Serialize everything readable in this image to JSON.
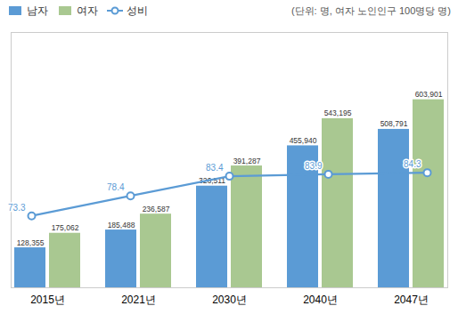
{
  "chart_data": {
    "type": "bar",
    "subtitle": "(단위: 명, 여자 노인인구 100명당 명)",
    "categories": [
      "2015년",
      "2021년",
      "2030년",
      "2040년",
      "2047년"
    ],
    "series": [
      {
        "name": "남자",
        "color": "#5B9BD5",
        "values": [
          128355,
          185488,
          326511,
          455940,
          508791
        ],
        "value_labels": [
          "128,355",
          "185,488",
          "326,511",
          "455,940",
          "508,791"
        ]
      },
      {
        "name": "여자",
        "color": "#A9C891",
        "values": [
          175062,
          236587,
          391287,
          543195,
          603901
        ],
        "value_labels": [
          "175,062",
          "236,587",
          "391,287",
          "543,195",
          "603,901"
        ]
      },
      {
        "name": "성비",
        "type": "line",
        "axis": "y2",
        "color": "#5B9BD5",
        "marker": "circle",
        "values": [
          73.3,
          78.4,
          83.4,
          83.9,
          84.3
        ]
      }
    ],
    "ylim": [
      0,
      820000
    ],
    "yticks": [],
    "y2lim": [
      55,
      120
    ],
    "y2ticks": [],
    "grid": false,
    "legend": "upper left",
    "data_labels": true,
    "tick_labels": "x"
  }
}
